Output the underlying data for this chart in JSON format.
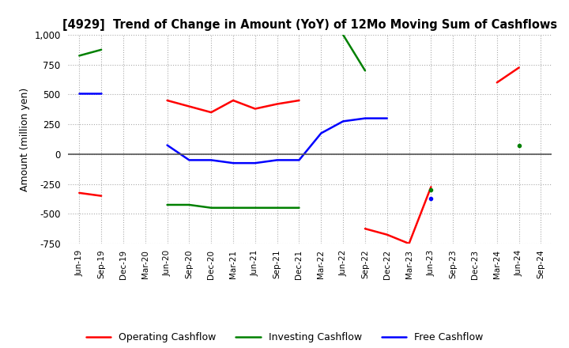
{
  "title": "[4929]  Trend of Change in Amount (YoY) of 12Mo Moving Sum of Cashflows",
  "ylabel": "Amount (million yen)",
  "ylim": [
    -750,
    1000
  ],
  "yticks": [
    -750,
    -500,
    -250,
    0,
    250,
    500,
    750,
    1000
  ],
  "x_labels": [
    "Jun-19",
    "Sep-19",
    "Dec-19",
    "Mar-20",
    "Jun-20",
    "Sep-20",
    "Dec-20",
    "Mar-21",
    "Jun-21",
    "Sep-21",
    "Dec-21",
    "Mar-22",
    "Jun-22",
    "Sep-22",
    "Dec-22",
    "Mar-23",
    "Jun-23",
    "Sep-23",
    "Dec-23",
    "Mar-24",
    "Jun-24",
    "Sep-24"
  ],
  "operating": [
    -325,
    -350,
    null,
    null,
    450,
    400,
    350,
    450,
    380,
    420,
    450,
    null,
    null,
    -625,
    -675,
    -750,
    -275,
    null,
    null,
    600,
    725,
    null
  ],
  "investing": [
    825,
    875,
    null,
    null,
    -425,
    -425,
    -450,
    -450,
    -450,
    -450,
    -450,
    null,
    1000,
    700,
    null,
    null,
    -300,
    null,
    null,
    null,
    75,
    null
  ],
  "free": [
    510,
    510,
    null,
    null,
    75,
    -50,
    -50,
    -75,
    -75,
    -50,
    -50,
    175,
    275,
    300,
    300,
    null,
    -375,
    null,
    null,
    null,
    null,
    null
  ],
  "operating_color": "#ff0000",
  "investing_color": "#008000",
  "free_color": "#0000ff",
  "background_color": "#ffffff",
  "grid_color": "#aaaaaa",
  "grid_style": "dotted"
}
